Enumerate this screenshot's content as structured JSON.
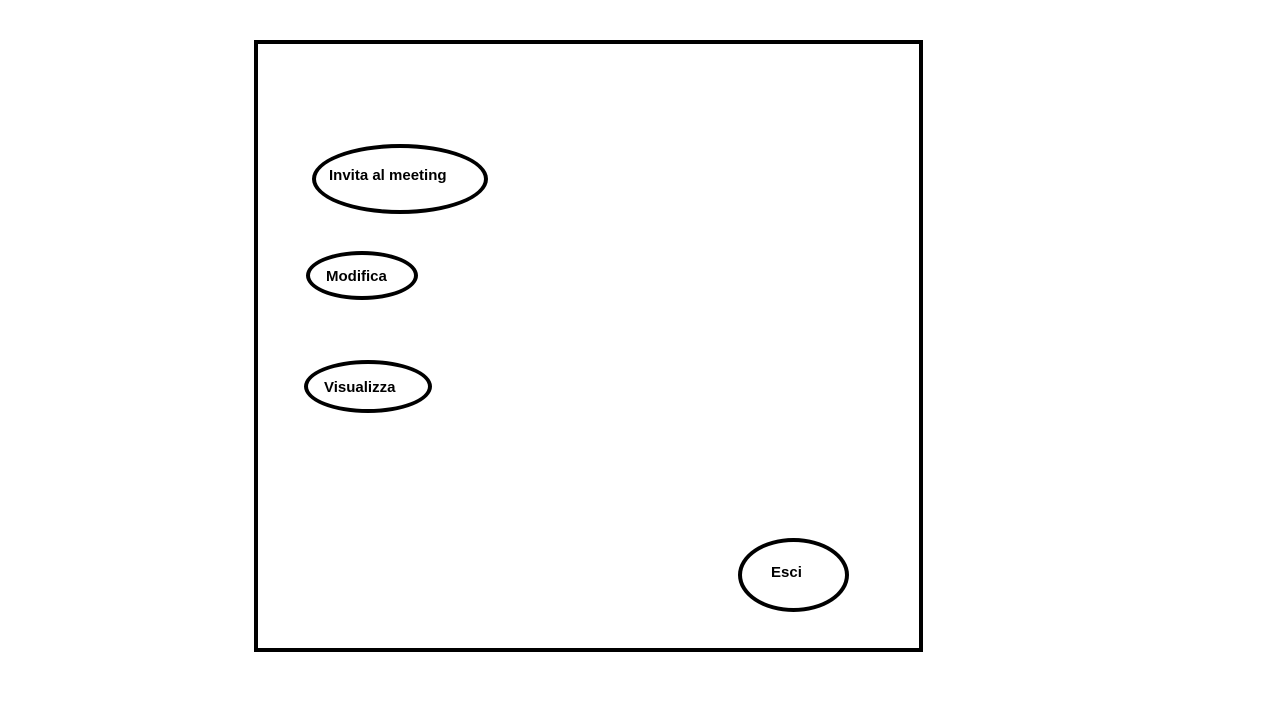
{
  "menu": {
    "invite_label": "Invita al meeting",
    "edit_label": "Modifica",
    "view_label": "Visualizza",
    "exit_label": "Esci"
  },
  "colors": {
    "stroke": "#000000",
    "background": "#ffffff"
  }
}
